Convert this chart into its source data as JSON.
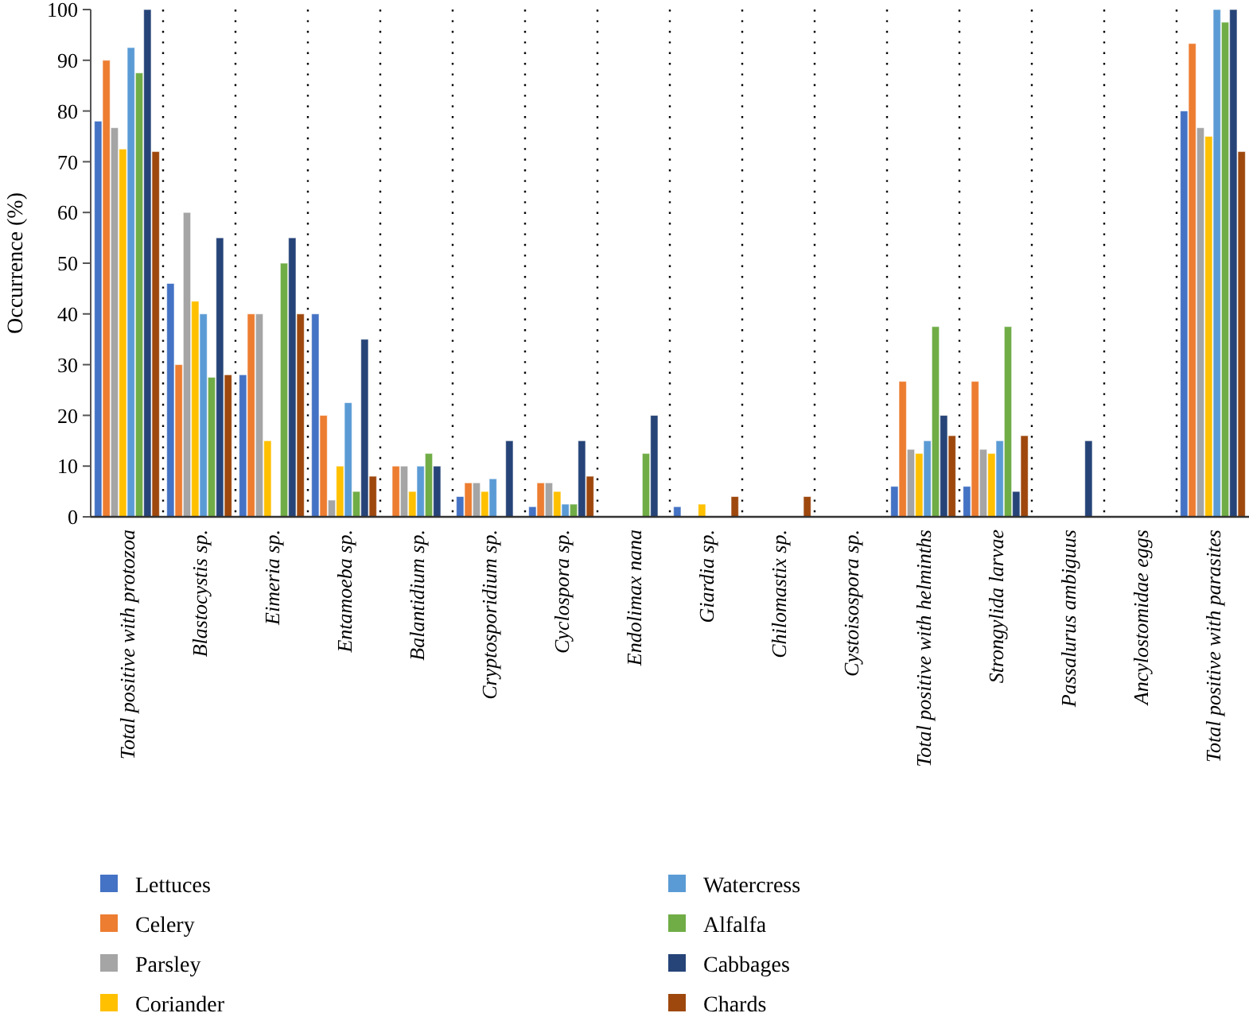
{
  "chart_data": {
    "type": "bar",
    "ylabel": "Occurrence (%)",
    "categories": [
      "Total positive with protozoa",
      "Blastocystis sp.",
      "Eimeria sp.",
      "Entamoeba sp.",
      "Balantidium sp.",
      "Cryptosporidium sp.",
      "Cyclospora sp.",
      "Endolimax nana",
      "Giardia sp.",
      "Chilomastix sp.",
      "Cystoisospora sp.",
      "Total positive with helminths",
      "Strongylida larvae",
      "Passalurus ambiguus",
      "Ancylostomidae eggs",
      "Total positive with parasites"
    ],
    "series": [
      {
        "name": "Lettuces",
        "color": "#4472c4",
        "values": [
          78,
          46,
          28,
          40,
          0,
          4,
          2,
          0,
          2,
          0,
          0,
          6,
          6,
          0,
          0,
          80
        ]
      },
      {
        "name": "Celery",
        "color": "#ed7d31",
        "values": [
          90,
          30,
          40,
          20,
          10,
          6.7,
          6.7,
          0,
          0,
          0,
          0,
          26.7,
          26.7,
          0,
          0,
          93.3
        ]
      },
      {
        "name": "Parsley",
        "color": "#a5a5a5",
        "values": [
          76.7,
          60,
          40,
          3.3,
          10,
          6.7,
          6.7,
          0,
          0,
          0,
          0,
          13.3,
          13.3,
          0,
          0,
          76.7
        ]
      },
      {
        "name": "Coriander",
        "color": "#ffc000",
        "values": [
          72.5,
          42.5,
          15,
          10,
          5,
          5,
          5,
          0,
          2.5,
          0,
          0,
          12.5,
          12.5,
          0,
          0,
          75
        ]
      },
      {
        "name": "Watercress",
        "color": "#5b9bd5",
        "values": [
          92.5,
          40,
          0,
          22.5,
          10,
          7.5,
          2.5,
          0,
          0,
          0,
          0,
          15,
          15,
          0,
          0,
          100
        ]
      },
      {
        "name": "Alfalfa",
        "color": "#70ad47",
        "values": [
          87.5,
          27.5,
          50,
          5,
          12.5,
          0,
          2.5,
          12.5,
          0,
          0,
          0,
          37.5,
          37.5,
          0,
          0,
          97.5
        ]
      },
      {
        "name": "Cabbages",
        "color": "#264478",
        "values": [
          100,
          55,
          55,
          35,
          10,
          15,
          15,
          20,
          0,
          0,
          0,
          20,
          5,
          15,
          0,
          100
        ]
      },
      {
        "name": "Chards",
        "color": "#9e480e",
        "values": [
          72,
          28,
          40,
          8,
          0,
          0,
          8,
          0,
          4,
          4,
          0,
          16,
          16,
          0,
          0,
          72
        ]
      }
    ],
    "ylim": [
      0,
      100
    ],
    "yticks": [
      0,
      10,
      20,
      30,
      40,
      50,
      60,
      70,
      80,
      90,
      100
    ],
    "grid": "x",
    "legend": "bottom"
  }
}
